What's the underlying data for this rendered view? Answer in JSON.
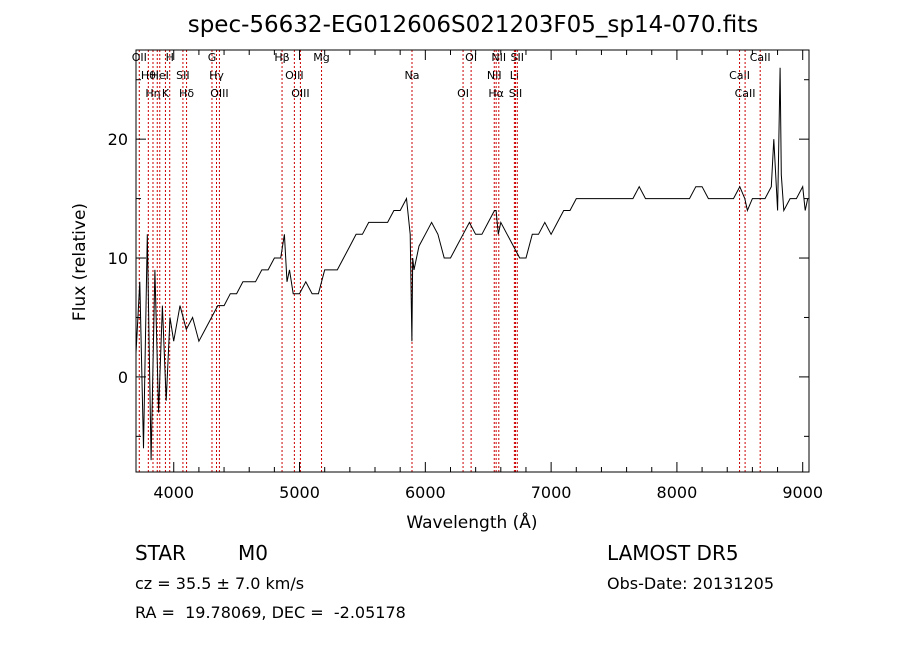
{
  "chart_data": {
    "type": "line",
    "title": "spec-56632-EG012606S021203F05_sp14-070.fits",
    "xlabel": "Wavelength (Å)",
    "ylabel": "Flux (relative)",
    "xlim": [
      3700,
      9050
    ],
    "ylim": [
      -8,
      27.5
    ],
    "xticks": [
      4000,
      5000,
      6000,
      7000,
      8000,
      9000
    ],
    "yticks": [
      0,
      10,
      20
    ],
    "grid": false,
    "series": [
      {
        "x": [
          3700,
          3730,
          3760,
          3790,
          3820,
          3850,
          3880,
          3910,
          3940,
          3970,
          4000,
          4050,
          4100,
          4150,
          4200,
          4250,
          4300,
          4350,
          4400,
          4450,
          4500,
          4550,
          4600,
          4650,
          4700,
          4750,
          4800,
          4850,
          4880,
          4900,
          4920,
          4950,
          5000,
          5050,
          5100,
          5150,
          5200,
          5250,
          5300,
          5350,
          5400,
          5450,
          5500,
          5550,
          5600,
          5650,
          5700,
          5750,
          5800,
          5850,
          5880,
          5893,
          5900,
          5910,
          5950,
          6000,
          6050,
          6100,
          6150,
          6200,
          6250,
          6300,
          6350,
          6400,
          6450,
          6500,
          6550,
          6563,
          6580,
          6600,
          6650,
          6700,
          6750,
          6800,
          6850,
          6900,
          6950,
          7000,
          7050,
          7100,
          7150,
          7200,
          7250,
          7300,
          7350,
          7400,
          7450,
          7500,
          7550,
          7600,
          7650,
          7700,
          7750,
          7800,
          7850,
          7900,
          7950,
          8000,
          8050,
          8100,
          8150,
          8200,
          8250,
          8300,
          8350,
          8400,
          8450,
          8500,
          8540,
          8560,
          8600,
          8650,
          8700,
          8750,
          8770,
          8800,
          8820,
          8830,
          8850,
          8900,
          8950,
          9000,
          9020,
          9040
        ],
        "y": [
          2,
          8,
          -6,
          12,
          -7,
          9,
          -3,
          6,
          -2,
          5,
          3,
          6,
          4,
          5,
          3,
          4,
          5,
          6,
          6,
          7,
          7,
          8,
          8,
          8,
          9,
          9,
          10,
          10,
          12,
          8,
          9,
          7,
          7,
          8,
          7,
          7,
          9,
          9,
          9,
          10,
          11,
          12,
          12,
          13,
          13,
          13,
          13,
          14,
          14,
          15,
          12,
          3,
          10,
          9,
          11,
          12,
          13,
          12,
          10,
          10,
          11,
          12,
          13,
          12,
          12,
          13,
          14,
          14,
          12,
          13,
          12,
          11,
          10,
          10,
          12,
          12,
          13,
          12,
          13,
          14,
          14,
          15,
          15,
          15,
          15,
          15,
          15,
          15,
          15,
          15,
          15,
          16,
          15,
          15,
          15,
          15,
          15,
          15,
          15,
          15,
          16,
          16,
          15,
          15,
          15,
          15,
          15,
          16,
          15,
          14,
          15,
          15,
          15,
          16,
          20,
          14,
          26,
          17,
          14,
          15,
          15,
          16,
          14,
          15
        ]
      }
    ],
    "lines": [
      {
        "wave": 3726,
        "label": "OII"
      },
      {
        "wave": 3798,
        "label": "Hθ"
      },
      {
        "wave": 3835,
        "label": "Hη"
      },
      {
        "wave": 3869,
        "label": ""
      },
      {
        "wave": 3889,
        "label": "HeI"
      },
      {
        "wave": 3934,
        "label": "K"
      },
      {
        "wave": 3968,
        "label": "H"
      },
      {
        "wave": 4073,
        "label": "SII"
      },
      {
        "wave": 4102,
        "label": "Hδ"
      },
      {
        "wave": 4304,
        "label": "G"
      },
      {
        "wave": 4340,
        "label": "Hγ"
      },
      {
        "wave": 4363,
        "label": "OIII"
      },
      {
        "wave": 4861,
        "label": "Hβ"
      },
      {
        "wave": 4959,
        "label": "OIII"
      },
      {
        "wave": 5007,
        "label": "OIII"
      },
      {
        "wave": 5175,
        "label": "Mg"
      },
      {
        "wave": 5894,
        "label": "Na"
      },
      {
        "wave": 6300,
        "label": "OI"
      },
      {
        "wave": 6364,
        "label": "OI"
      },
      {
        "wave": 6548,
        "label": "NII"
      },
      {
        "wave": 6563,
        "label": "Hα"
      },
      {
        "wave": 6584,
        "label": "NII"
      },
      {
        "wave": 6708,
        "label": "Li"
      },
      {
        "wave": 6717,
        "label": "SII"
      },
      {
        "wave": 6731,
        "label": "SII"
      },
      {
        "wave": 8498,
        "label": "CaII"
      },
      {
        "wave": 8542,
        "label": "CaII"
      },
      {
        "wave": 8662,
        "label": "CaII"
      }
    ],
    "line_color": "#cc0000"
  },
  "info": {
    "class_label": "STAR",
    "subclass": "M0",
    "survey": "LAMOST DR5",
    "cz_text": "cz = 35.5 ± 7.0 km/s",
    "obs_date_text": "Obs-Date: 20131205",
    "radec_text": "RA =  19.78069, DEC =  -2.05178"
  }
}
